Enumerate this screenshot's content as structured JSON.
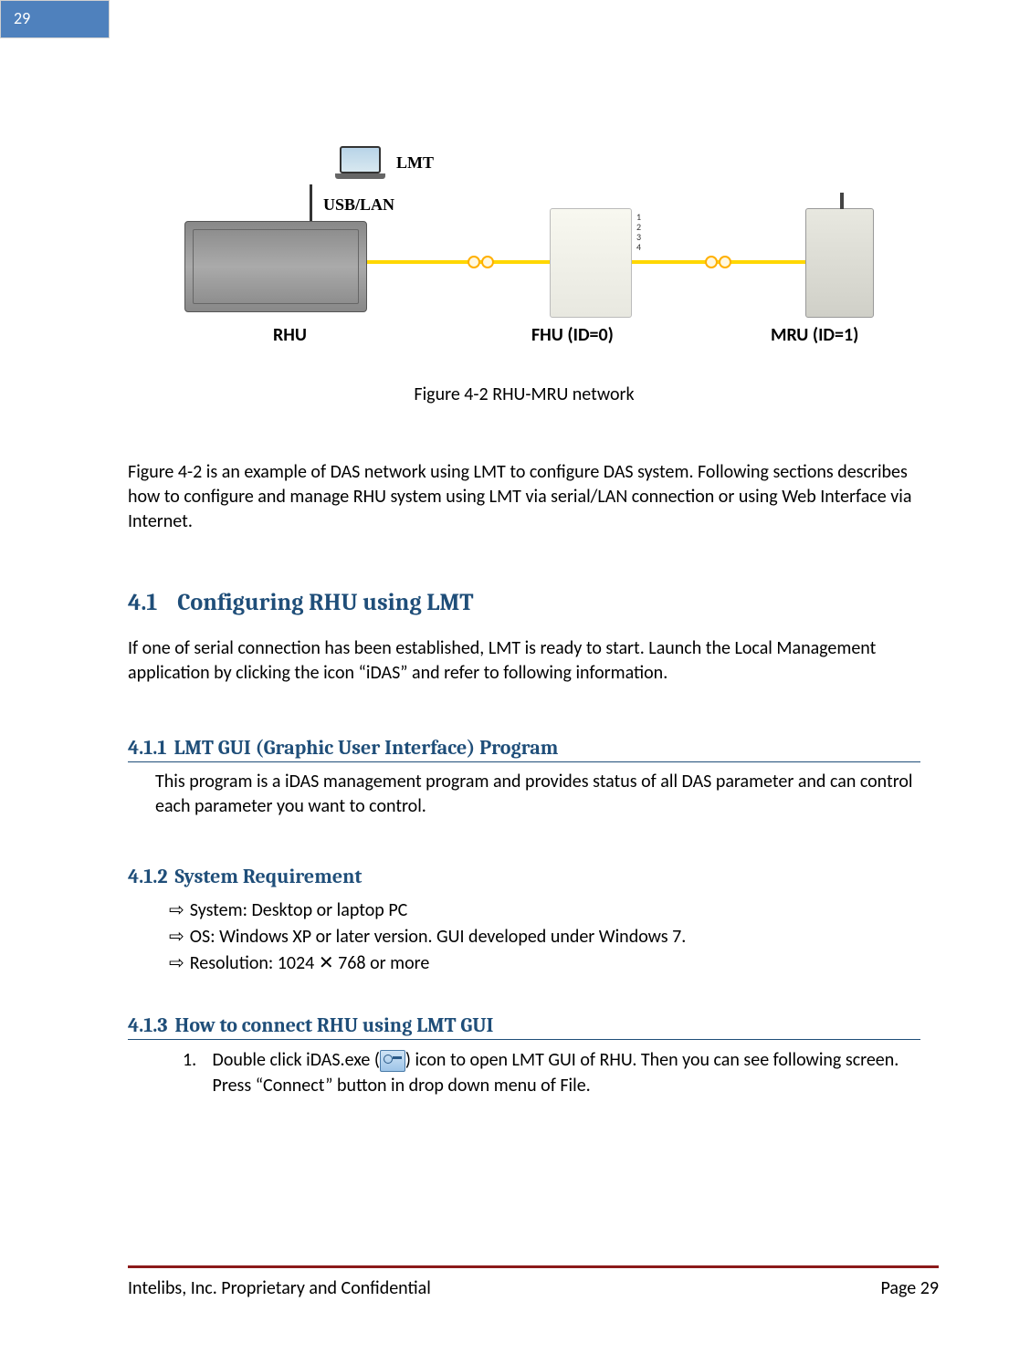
{
  "page_tab": "29",
  "diagram": {
    "lmt": "LMT",
    "usb_lan": "USB/LAN",
    "rhu": "RHU",
    "fhu": "FHU (ID=0)",
    "mru": "MRU (ID=1)",
    "ports": "1\n2\n3\n4"
  },
  "figure_caption": "Figure 4-2 RHU-MRU network",
  "intro_text": "Figure 4-2 is an example of DAS network using LMT to configure DAS system. Following sections describes how to configure and manage RHU system using LMT via serial/LAN connection or using Web Interface via Internet.",
  "h2_num": "4.1",
  "h2_title": "Configuring RHU using LMT",
  "h2_text": "If one of serial connection has been established, LMT is ready to start. Launch the Local Management application by clicking the icon “iDAS” and refer to following information.",
  "s411_num": "4.1.1",
  "s411_title": "LMT GUI (Graphic User Interface) Program",
  "s411_text": "This program is a iDAS management program and provides status of all DAS parameter and can control each parameter you want to control.",
  "s412_num": "4.1.2",
  "s412_title": "System Requirement",
  "req1": "System: Desktop or laptop PC",
  "req2": "OS: Windows XP or later version. GUI developed under Windows 7.",
  "req3_a": "Resolution: 1024 ",
  "req3_b": " 768 or more",
  "s413_num": "4.1.3",
  "s413_title": "How to connect RHU using LMT GUI",
  "step1_num": "1.",
  "step1_a": "Double click iDAS.exe (",
  "step1_b": ") icon to open LMT GUI of RHU. Then you can see following screen. Press “Connect” button in drop down menu of File.",
  "footer_left": "Intelibs, Inc. Proprietary and Confidential",
  "footer_right": "Page 29",
  "colors": {
    "tab_bg": "#4f81bd",
    "heading": "#1f4e79",
    "footer_rule": "#8b1a1a",
    "fiber": "#ffd700"
  }
}
